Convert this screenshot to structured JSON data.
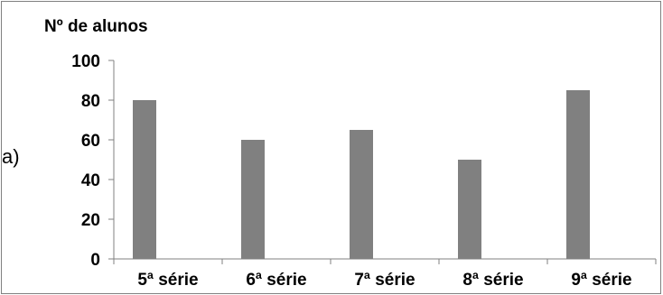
{
  "side_label": "a)",
  "chart_data": {
    "type": "bar",
    "ylabel": "Nº de alunos",
    "xlabel": "",
    "title": "",
    "categories": [
      "5ª série",
      "6ª série",
      "7ª série",
      "8ª série",
      "9ª série"
    ],
    "values": [
      80,
      60,
      65,
      50,
      85
    ],
    "ylim": [
      0,
      100
    ],
    "yticks": [
      0,
      20,
      40,
      60,
      80,
      100
    ],
    "grid": false,
    "legend": "none",
    "bar_color": "#808080"
  }
}
